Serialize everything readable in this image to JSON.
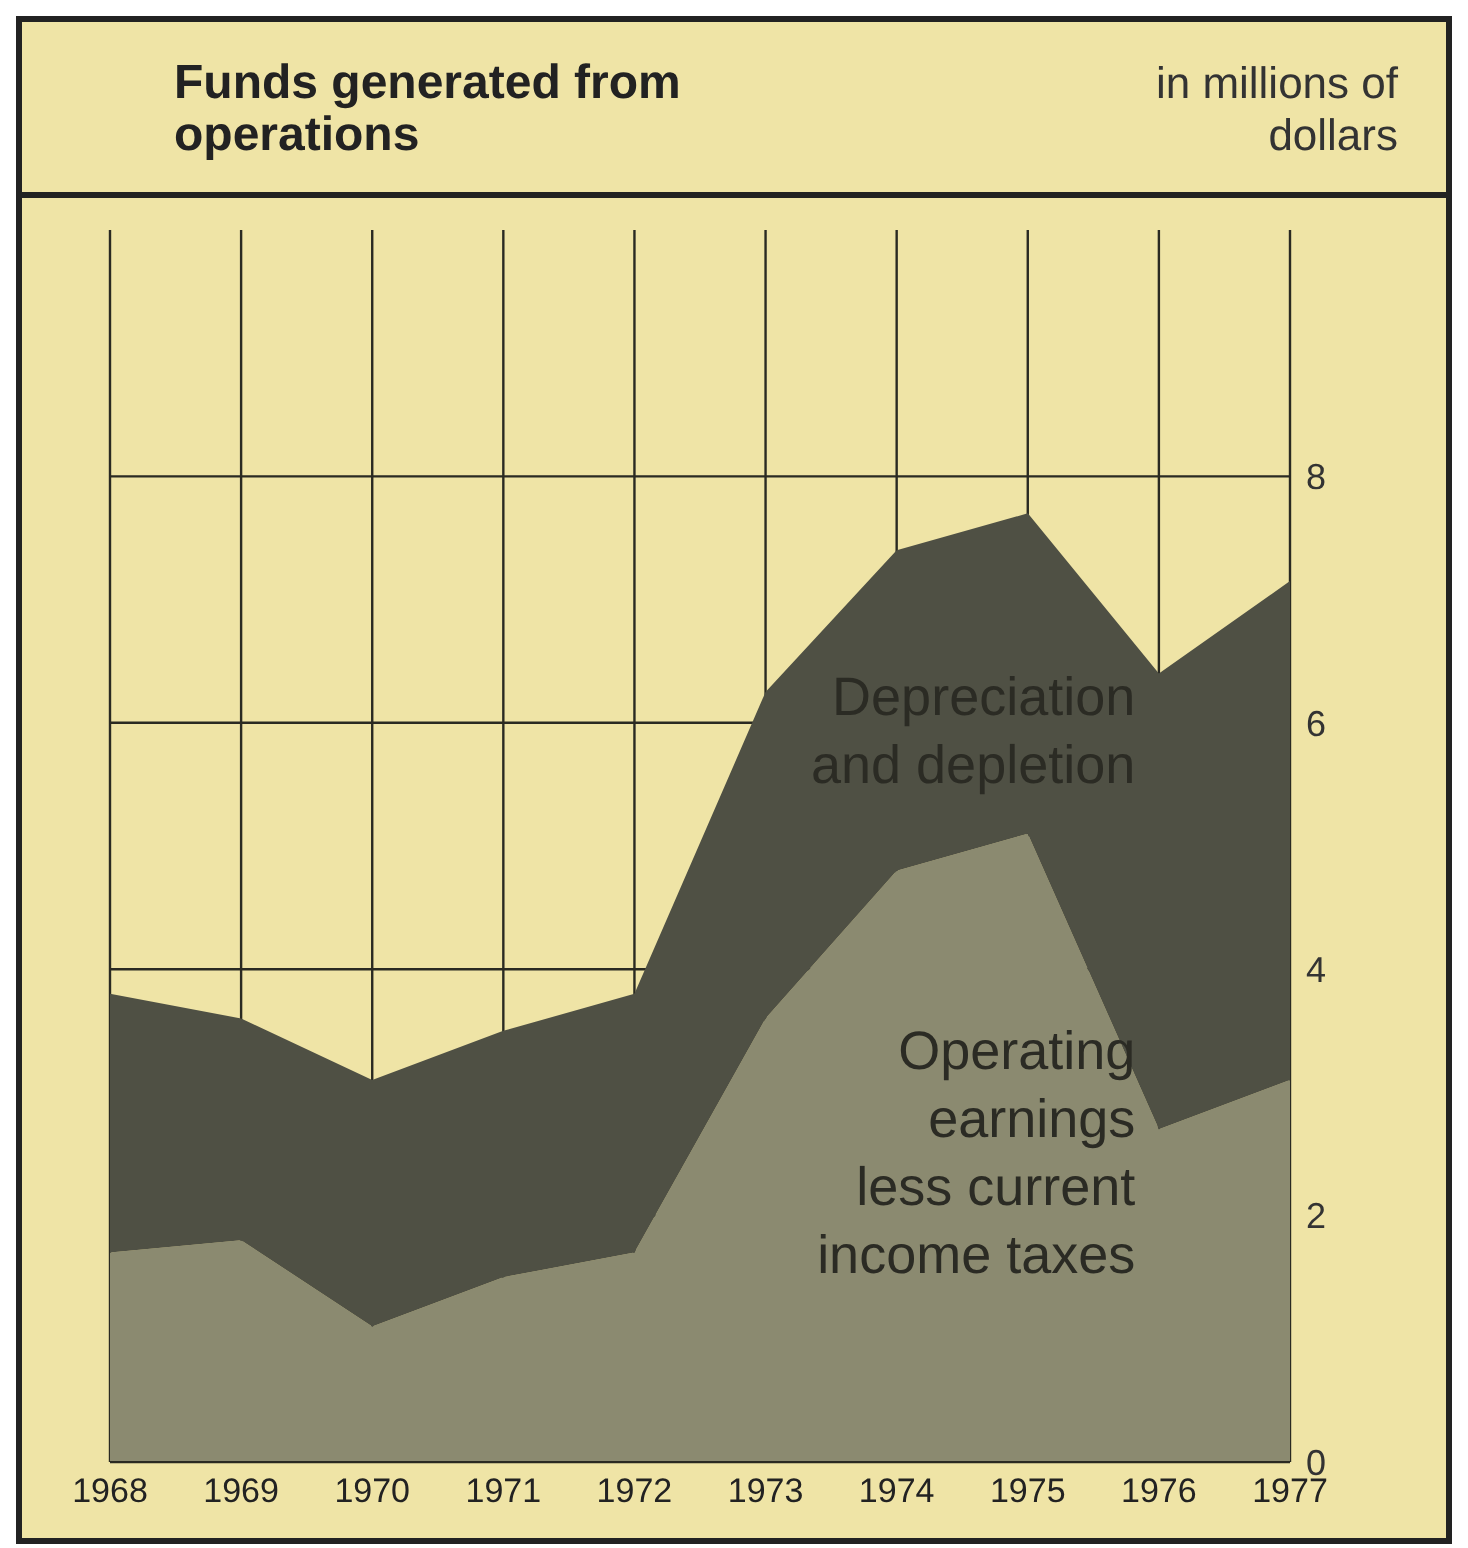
{
  "chart_data": {
    "type": "area",
    "stacked": true,
    "title": "Funds generated from operations",
    "ylabel": "in millions of dollars",
    "x": [
      1968,
      1969,
      1970,
      1971,
      1972,
      1973,
      1974,
      1975,
      1976,
      1977
    ],
    "xlim": [
      1968,
      1977
    ],
    "xticks": [
      1968,
      1969,
      1970,
      1971,
      1972,
      1973,
      1974,
      1975,
      1976,
      1977
    ],
    "ylim": [
      0,
      10
    ],
    "yticks": [
      0,
      2,
      4,
      6,
      8
    ],
    "grid": true,
    "legend": false,
    "series": [
      {
        "name": "Operating earnings less current income taxes",
        "color": "#8b8a70",
        "values": [
          1.7,
          1.8,
          1.1,
          1.5,
          1.7,
          3.6,
          4.8,
          5.1,
          2.7,
          3.1
        ]
      },
      {
        "name": "Depreciation and depletion",
        "color": "#4f5044",
        "values": [
          2.1,
          1.8,
          2.0,
          2.0,
          2.1,
          2.65,
          2.6,
          2.6,
          3.7,
          4.05
        ]
      }
    ]
  }
}
